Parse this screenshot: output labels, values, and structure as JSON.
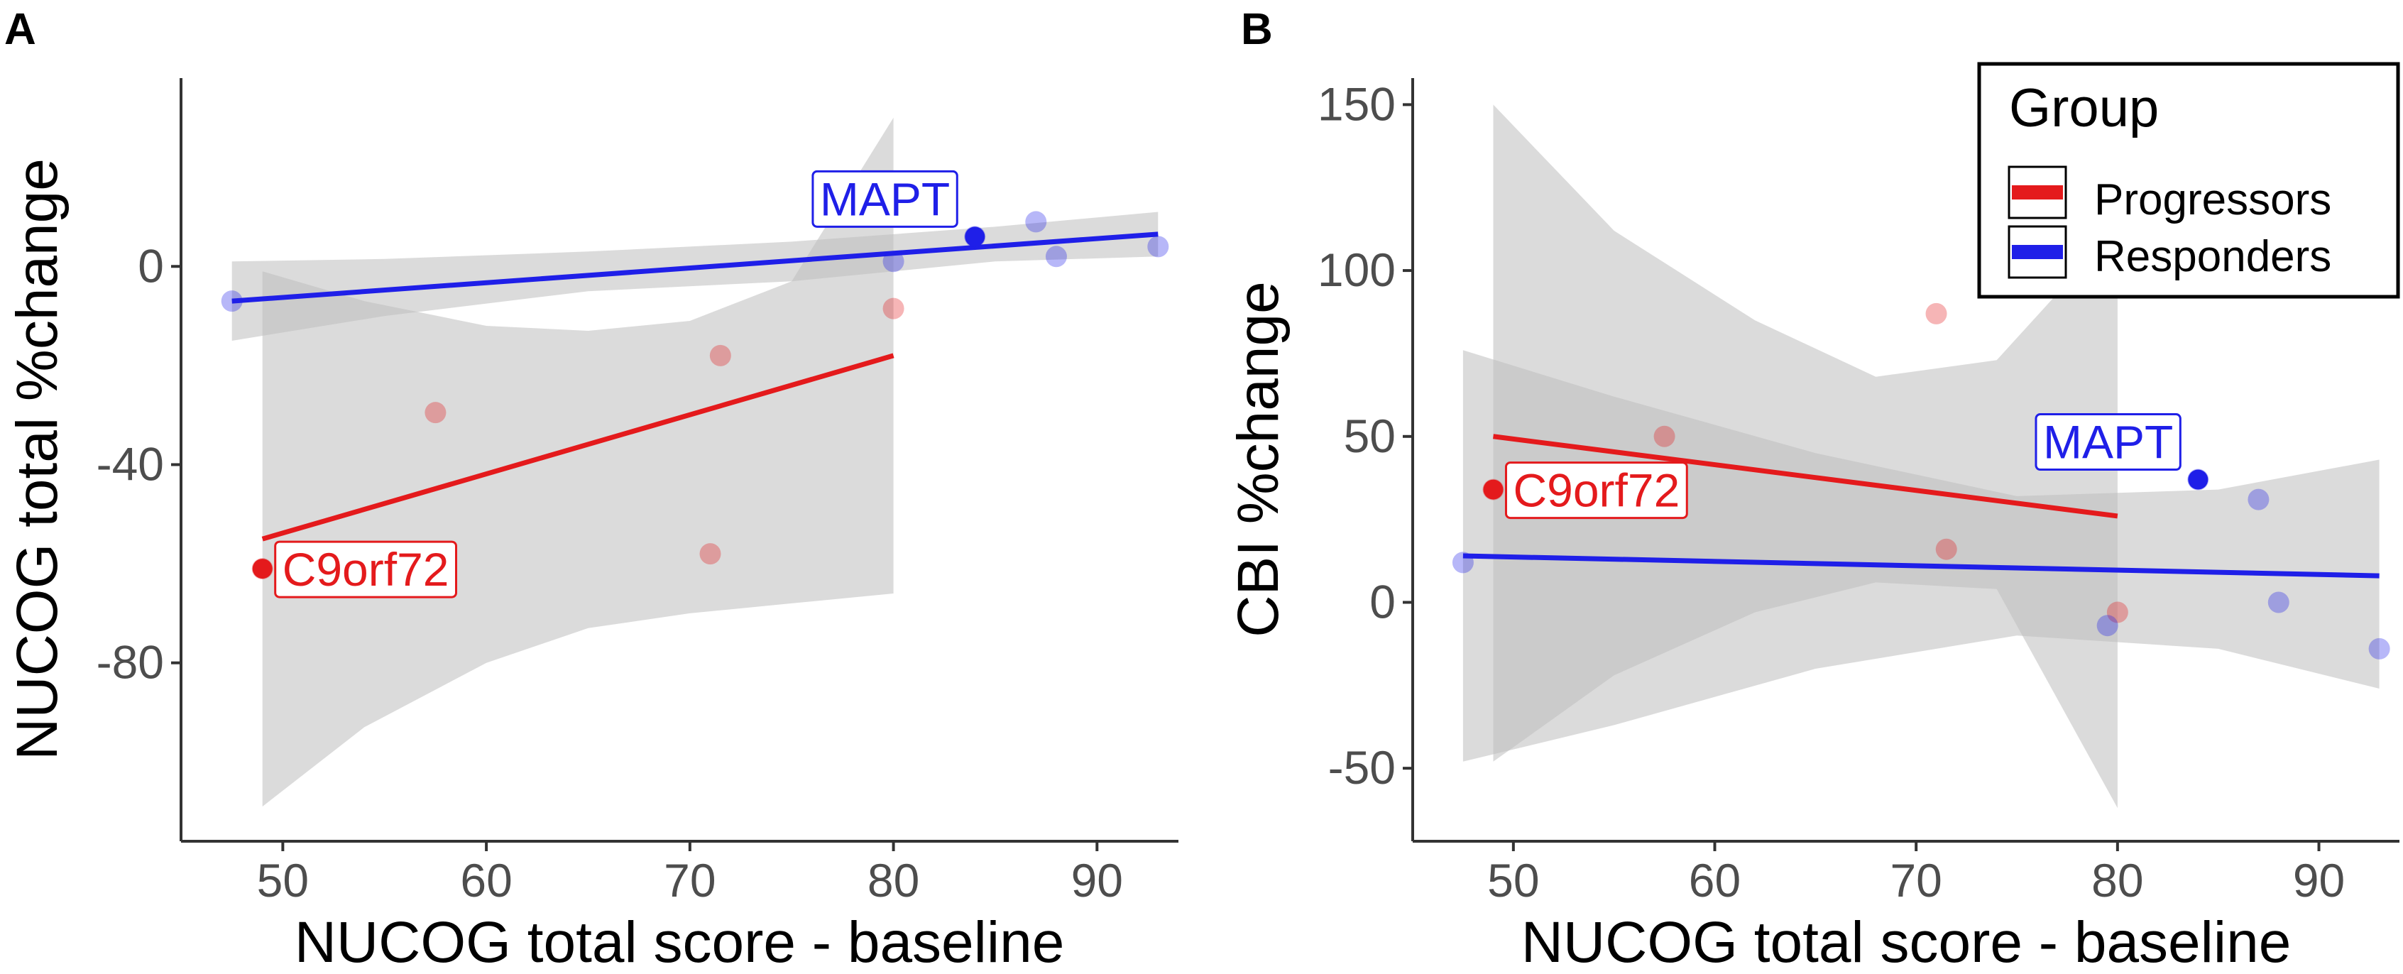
{
  "colors": {
    "progressors": "#e41a1c",
    "responders": "#1f1fe8",
    "band": "#bdbdbd",
    "axis": "#333333"
  },
  "legend": {
    "title": "Group",
    "items": [
      {
        "label": "Progressors",
        "color": "#e41a1c"
      },
      {
        "label": "Responders",
        "color": "#1f1fe8"
      }
    ]
  },
  "chart_data": [
    {
      "panel": "A",
      "type": "scatter",
      "xlabel": "NUCOG total score - baseline",
      "ylabel": "NUCOG total %change",
      "xlim": [
        45,
        94
      ],
      "ylim": [
        -116,
        38
      ],
      "xticks": [
        50,
        60,
        70,
        80,
        90
      ],
      "yticks": [
        0,
        -40,
        -80
      ],
      "series": [
        {
          "name": "Progressors",
          "points": [
            [
              49,
              -61
            ],
            [
              57.5,
              -29.5
            ],
            [
              71,
              -58
            ],
            [
              71.5,
              -18
            ],
            [
              80,
              -8.5
            ]
          ],
          "highlight": {
            "x": 49,
            "y": -61,
            "label": "C9orf72"
          },
          "fit": {
            "x": [
              49,
              80
            ],
            "y": [
              -55,
              -18
            ]
          },
          "band": {
            "x": [
              49,
              54,
              60,
              65,
              70,
              75,
              80
            ],
            "lower": [
              -109,
              -93,
              -80,
              -73,
              -70,
              -68,
              -66
            ],
            "upper": [
              -1,
              -7,
              -12,
              -13,
              -11,
              -3,
              30
            ]
          }
        },
        {
          "name": "Responders",
          "points": [
            [
              47.5,
              -7
            ],
            [
              80,
              1
            ],
            [
              84,
              6
            ],
            [
              87,
              9
            ],
            [
              88,
              2
            ],
            [
              93,
              4
            ]
          ],
          "highlight": {
            "x": 84,
            "y": 6,
            "label": "MAPT"
          },
          "fit": {
            "x": [
              47.5,
              93
            ],
            "y": [
              -7,
              6.5
            ]
          },
          "band": {
            "x": [
              47.5,
              55,
              65,
              75,
              85,
              93
            ],
            "lower": [
              -15,
              -10,
              -5,
              -3,
              1,
              2
            ],
            "upper": [
              1,
              1.5,
              3,
              5,
              8,
              11
            ]
          }
        }
      ]
    },
    {
      "panel": "B",
      "type": "scatter",
      "xlabel": "NUCOG total score - baseline",
      "ylabel": "CBI %change",
      "xlim": [
        45,
        94
      ],
      "ylim": [
        -72,
        158
      ],
      "xticks": [
        50,
        60,
        70,
        80,
        90
      ],
      "yticks": [
        150,
        100,
        50,
        0,
        -50
      ],
      "series": [
        {
          "name": "Progressors",
          "points": [
            [
              49,
              34
            ],
            [
              57.5,
              50
            ],
            [
              71,
              87
            ],
            [
              71.5,
              16
            ],
            [
              80,
              -3
            ]
          ],
          "highlight": {
            "x": 49,
            "y": 34,
            "label": "C9orf72"
          },
          "fit": {
            "x": [
              49,
              80
            ],
            "y": [
              50,
              26
            ]
          },
          "band": {
            "x": [
              49,
              55,
              62,
              68,
              74,
              80
            ],
            "lower": [
              -48,
              -22,
              -3,
              6,
              4,
              -62
            ],
            "upper": [
              150,
              112,
              85,
              68,
              73,
              113
            ]
          }
        },
        {
          "name": "Responders",
          "points": [
            [
              47.5,
              12
            ],
            [
              79.5,
              -7
            ],
            [
              84,
              37
            ],
            [
              87,
              31
            ],
            [
              88,
              0
            ],
            [
              93,
              -14
            ]
          ],
          "highlight": {
            "x": 84,
            "y": 37,
            "label": "MAPT"
          },
          "fit": {
            "x": [
              47.5,
              93
            ],
            "y": [
              14,
              8
            ]
          },
          "band": {
            "x": [
              47.5,
              55,
              65,
              75,
              85,
              93
            ],
            "lower": [
              -48,
              -37,
              -20,
              -10,
              -14,
              -26
            ],
            "upper": [
              76,
              62,
              45,
              32,
              34,
              43
            ]
          }
        }
      ]
    }
  ]
}
